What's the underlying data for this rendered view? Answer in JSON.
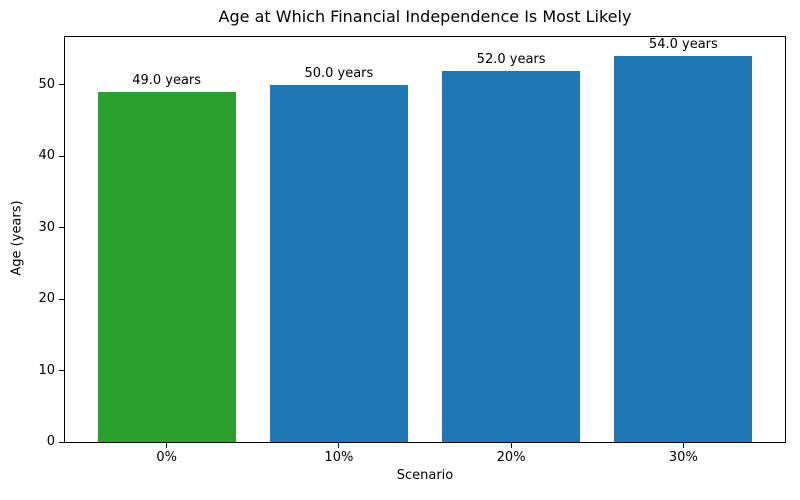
{
  "chart_data": {
    "type": "bar",
    "title": "Age at Which Financial Independence Is Most Likely",
    "xlabel": "Scenario",
    "ylabel": "Age (years)",
    "categories": [
      "0%",
      "10%",
      "20%",
      "30%"
    ],
    "values": [
      49.0,
      50.0,
      52.0,
      54.0
    ],
    "bar_labels": [
      "49.0 years",
      "50.0 years",
      "52.0 years",
      "54.0 years"
    ],
    "bar_colors": [
      "#2ca02c",
      "#1f77b4",
      "#1f77b4",
      "#1f77b4"
    ],
    "yticks": [
      0,
      10,
      20,
      30,
      40,
      50
    ],
    "ylim": [
      0,
      56.7
    ],
    "bar_width_fraction": 0.8,
    "grid": false,
    "legend": "none",
    "colors": {
      "highlight_bar": "#2ca02c",
      "default_bar": "#1f77b4",
      "spine": "#000000",
      "text": "#000000",
      "background": "#ffffff"
    }
  }
}
